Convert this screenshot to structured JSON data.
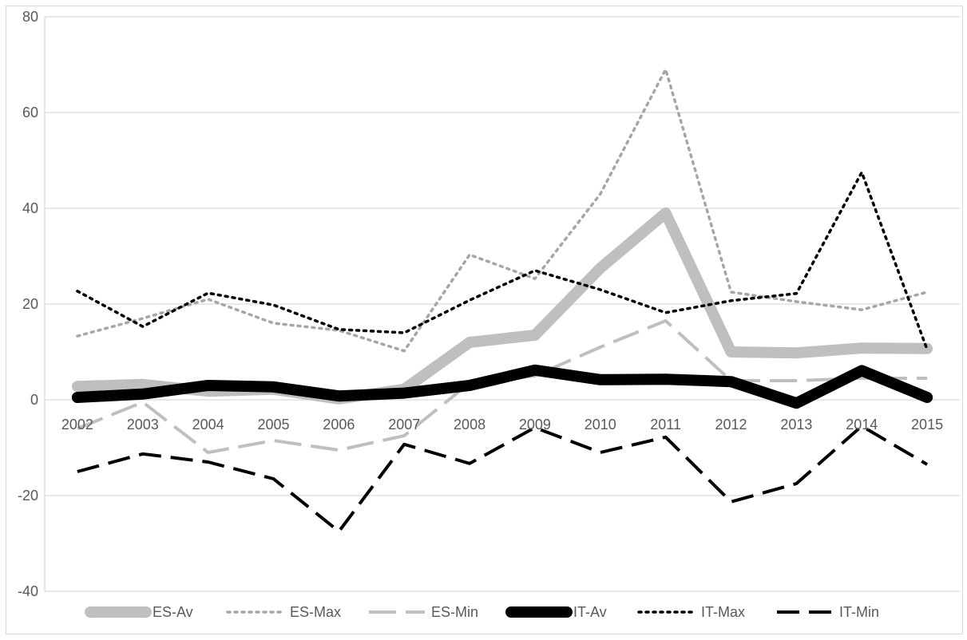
{
  "chart_data": {
    "type": "line",
    "title": "",
    "xlabel": "",
    "ylabel": "",
    "categories": [
      "2002",
      "2003",
      "2004",
      "2005",
      "2006",
      "2007",
      "2008",
      "2009",
      "2010",
      "2011",
      "2012",
      "2013",
      "2014",
      "2015"
    ],
    "ylim": [
      -40,
      80
    ],
    "yticks": [
      "-40",
      "-20",
      "0",
      "20",
      "40",
      "60",
      "80"
    ],
    "grid": "horizontal",
    "legend_position": "bottom",
    "series": [
      {
        "name": "ES-Av",
        "color": "#bfbfbf",
        "style": "thick-solid",
        "values": [
          2.8,
          3.2,
          1.8,
          2.2,
          0.2,
          2.2,
          12,
          13.5,
          27.5,
          39,
          10,
          9.8,
          10.8,
          10.7
        ]
      },
      {
        "name": "ES-Max",
        "color": "#a6a6a6",
        "style": "dotted",
        "values": [
          13.3,
          17,
          21,
          16,
          14.5,
          10.2,
          30.3,
          25.3,
          43,
          69,
          22.5,
          20.5,
          18.8,
          22.5
        ]
      },
      {
        "name": "ES-Min",
        "color": "#bfbfbf",
        "style": "long-dash",
        "values": [
          -6,
          -0.5,
          -11,
          -8.5,
          -10.5,
          -7.5,
          3.5,
          5,
          11,
          16.5,
          4,
          4,
          4.5,
          4.5
        ]
      },
      {
        "name": "IT-Av",
        "color": "#000000",
        "style": "thick-solid",
        "values": [
          0.5,
          1.2,
          3,
          2.7,
          0.8,
          1.4,
          3,
          6.2,
          4.2,
          4.3,
          3.8,
          -0.7,
          6.1,
          0.5
        ]
      },
      {
        "name": "IT-Max",
        "color": "#000000",
        "style": "dotted",
        "values": [
          22.7,
          15.3,
          22.3,
          19.8,
          14.7,
          14,
          20.8,
          27,
          23,
          18.2,
          20.7,
          22.2,
          47.5,
          10.5
        ]
      },
      {
        "name": "IT-Min",
        "color": "#000000",
        "style": "dash",
        "values": [
          -15,
          -11.3,
          -13,
          -16.5,
          -27.5,
          -9.3,
          -13.3,
          -5.8,
          -11,
          -7.8,
          -21.3,
          -17.5,
          -5.5,
          -13.5
        ]
      }
    ]
  }
}
